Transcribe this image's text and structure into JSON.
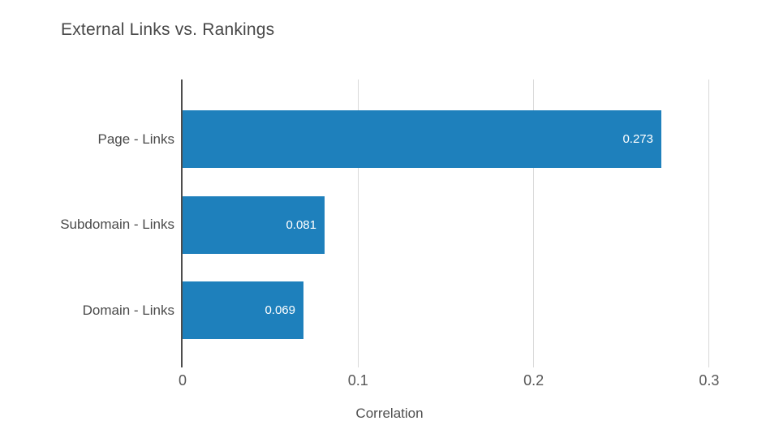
{
  "chart_data": {
    "type": "bar",
    "orientation": "horizontal",
    "title": "External Links vs. Rankings",
    "categories": [
      "Page - Links",
      "Subdomain - Links",
      "Domain - Links"
    ],
    "values": [
      0.273,
      0.081,
      0.069
    ],
    "value_labels": [
      "0.273",
      "0.081",
      "0.069"
    ],
    "xlabel": "Correlation",
    "x_ticks": [
      0,
      0.1,
      0.2,
      0.3
    ],
    "x_tick_labels": [
      "0",
      "0.1",
      "0.2",
      "0.3"
    ],
    "xlim": [
      0,
      0.33
    ],
    "grid": "vertical-gridlines",
    "legend": "none",
    "colors": {
      "bar": "#1e80bc",
      "value_label": "#ffffff",
      "axis_line": "#4d4d4d",
      "gridline": "#d9d9d9",
      "title_text": "#474747",
      "category_text": "#4a4a4a",
      "tick_text": "#565656",
      "background": "#ffffff"
    }
  }
}
